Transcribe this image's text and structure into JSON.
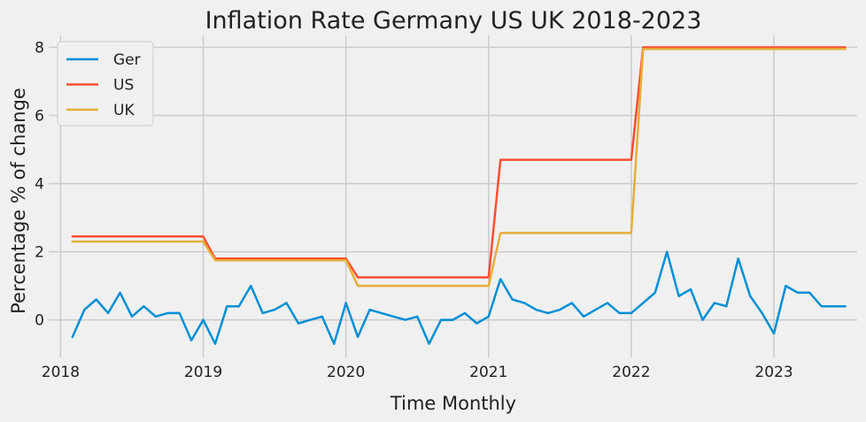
{
  "chart_data": {
    "type": "line",
    "title": "Inflation Rate Germany US UK 2018-2023",
    "xlabel": "Time Monthly",
    "ylabel": "Percentage % of change",
    "xlim": [
      "2017-12",
      "2023-08"
    ],
    "ylim": [
      -1.1,
      8.35
    ],
    "x_ticks": [
      "2018",
      "2019",
      "2020",
      "2021",
      "2022",
      "2023"
    ],
    "y_ticks": [
      0,
      2,
      4,
      6,
      8
    ],
    "grid": true,
    "legend_position": "top-left",
    "colors": {
      "Ger": "#008fd5",
      "US": "#fc4f30",
      "UK": "#e5ae38",
      "background": "#f0f0f0",
      "grid": "#cbcbcb"
    },
    "x": [
      "2018-02",
      "2018-03",
      "2018-04",
      "2018-05",
      "2018-06",
      "2018-07",
      "2018-08",
      "2018-09",
      "2018-10",
      "2018-11",
      "2018-12",
      "2019-01",
      "2019-02",
      "2019-03",
      "2019-04",
      "2019-05",
      "2019-06",
      "2019-07",
      "2019-08",
      "2019-09",
      "2019-10",
      "2019-11",
      "2019-12",
      "2020-01",
      "2020-02",
      "2020-03",
      "2020-04",
      "2020-05",
      "2020-06",
      "2020-07",
      "2020-08",
      "2020-09",
      "2020-10",
      "2020-11",
      "2020-12",
      "2021-01",
      "2021-02",
      "2021-03",
      "2021-04",
      "2021-05",
      "2021-06",
      "2021-07",
      "2021-08",
      "2021-09",
      "2021-10",
      "2021-11",
      "2021-12",
      "2022-01",
      "2022-02",
      "2022-03",
      "2022-04",
      "2022-05",
      "2022-06",
      "2022-07",
      "2022-08",
      "2022-09",
      "2022-10",
      "2022-11",
      "2022-12",
      "2023-01",
      "2023-02",
      "2023-03",
      "2023-04",
      "2023-05",
      "2023-06",
      "2023-07"
    ],
    "series": [
      {
        "name": "Ger",
        "values": [
          -0.5,
          0.3,
          0.6,
          0.2,
          0.8,
          0.1,
          0.4,
          0.1,
          0.2,
          0.2,
          -0.6,
          0.0,
          -0.7,
          0.4,
          0.4,
          1.0,
          0.2,
          0.3,
          0.5,
          -0.1,
          0.0,
          0.1,
          -0.7,
          0.5,
          -0.5,
          0.3,
          0.2,
          0.1,
          0.0,
          0.1,
          -0.7,
          0.0,
          0.0,
          0.2,
          -0.1,
          0.1,
          1.2,
          0.6,
          0.5,
          0.3,
          0.2,
          0.3,
          0.5,
          0.1,
          0.3,
          0.5,
          0.2,
          0.2,
          0.5,
          0.8,
          2.0,
          0.7,
          0.9,
          0.0,
          0.5,
          0.4,
          1.8,
          0.7,
          0.2,
          -0.4,
          1.0,
          0.8,
          0.8,
          0.4,
          0.4,
          0.4
        ]
      },
      {
        "name": "US",
        "values": [
          2.45,
          2.45,
          2.45,
          2.45,
          2.45,
          2.45,
          2.45,
          2.45,
          2.45,
          2.45,
          2.45,
          2.45,
          1.8,
          1.8,
          1.8,
          1.8,
          1.8,
          1.8,
          1.8,
          1.8,
          1.8,
          1.8,
          1.8,
          1.8,
          1.25,
          1.25,
          1.25,
          1.25,
          1.25,
          1.25,
          1.25,
          1.25,
          1.25,
          1.25,
          1.25,
          1.25,
          4.7,
          4.7,
          4.7,
          4.7,
          4.7,
          4.7,
          4.7,
          4.7,
          4.7,
          4.7,
          4.7,
          4.7,
          8.0,
          8.0,
          8.0,
          8.0,
          8.0,
          8.0,
          8.0,
          8.0,
          8.0,
          8.0,
          8.0,
          8.0,
          8.0,
          8.0,
          8.0,
          8.0,
          8.0,
          8.0
        ]
      },
      {
        "name": "UK",
        "values": [
          2.3,
          2.3,
          2.3,
          2.3,
          2.3,
          2.3,
          2.3,
          2.3,
          2.3,
          2.3,
          2.3,
          2.3,
          1.75,
          1.75,
          1.75,
          1.75,
          1.75,
          1.75,
          1.75,
          1.75,
          1.75,
          1.75,
          1.75,
          1.75,
          1.0,
          1.0,
          1.0,
          1.0,
          1.0,
          1.0,
          1.0,
          1.0,
          1.0,
          1.0,
          1.0,
          1.0,
          2.55,
          2.55,
          2.55,
          2.55,
          2.55,
          2.55,
          2.55,
          2.55,
          2.55,
          2.55,
          2.55,
          2.55,
          7.95,
          7.95,
          7.95,
          7.95,
          7.95,
          7.95,
          7.95,
          7.95,
          7.95,
          7.95,
          7.95,
          7.95,
          7.95,
          7.95,
          7.95,
          7.95,
          7.95,
          7.95
        ]
      }
    ]
  }
}
